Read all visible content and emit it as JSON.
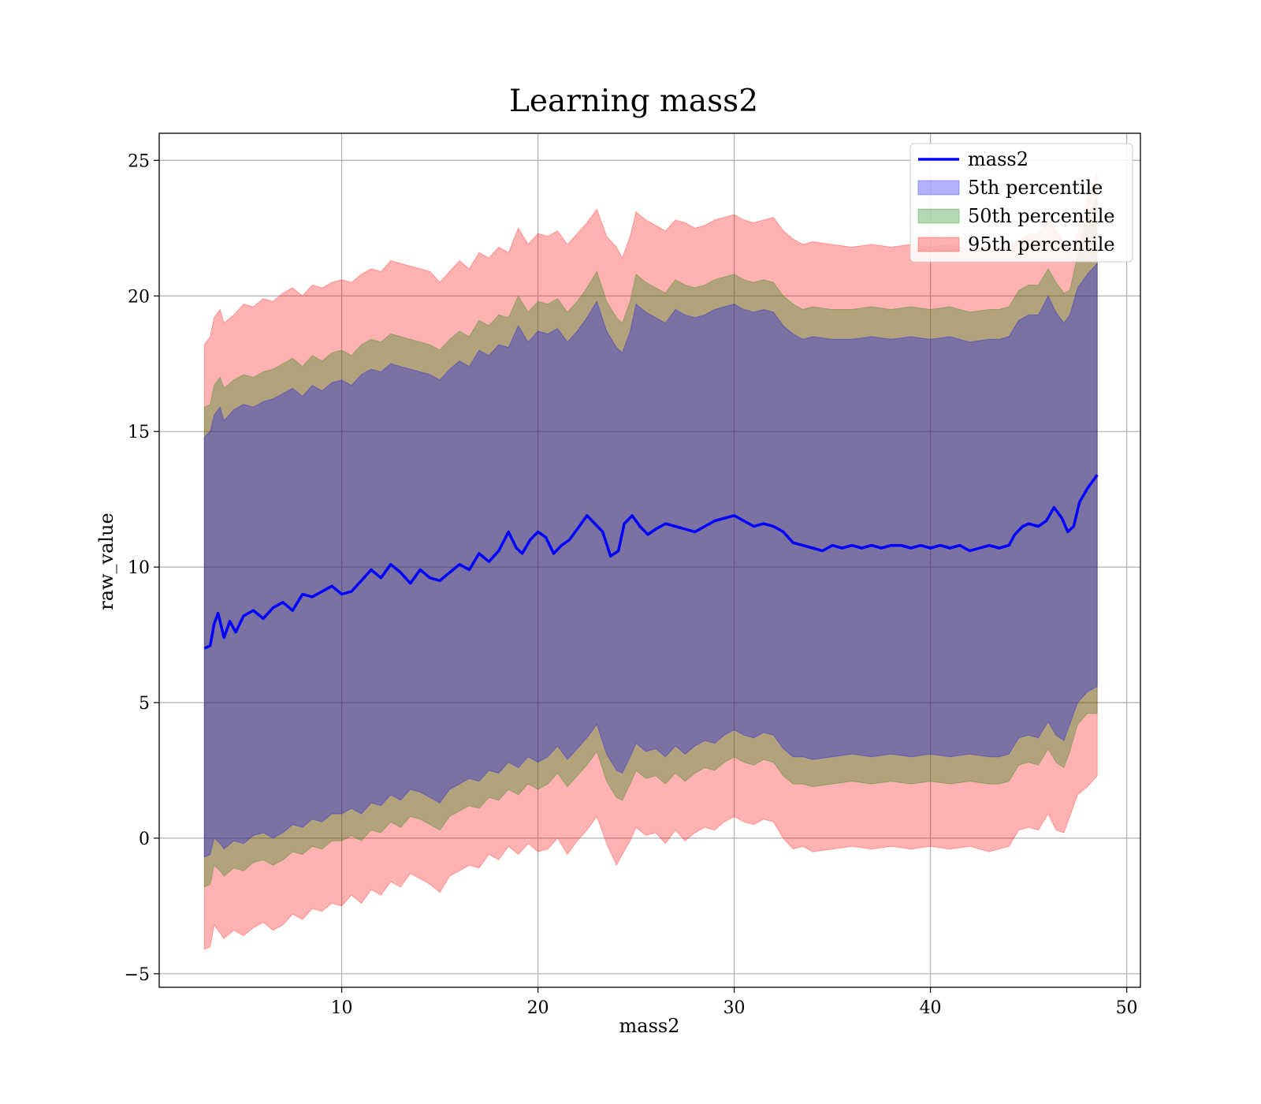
{
  "chart_data": {
    "type": "area",
    "title": "Learning mass2",
    "xlabel": "mass2",
    "ylabel": "raw_value",
    "xlim": [
      0.7,
      50.7
    ],
    "ylim": [
      -5.5,
      26
    ],
    "xticks": [
      10,
      20,
      30,
      40,
      50
    ],
    "yticks": [
      -5,
      0,
      5,
      10,
      15,
      20,
      25
    ],
    "ytick_labels": [
      "−5",
      "0",
      "5",
      "10",
      "15",
      "20",
      "25"
    ],
    "grid": true,
    "legend_position": "top-right",
    "legend": [
      {
        "label": "mass2",
        "kind": "line",
        "color": "#0000ff"
      },
      {
        "label": "5th percentile",
        "kind": "patch",
        "color": "#0000ff"
      },
      {
        "label": "50th percentile",
        "kind": "patch",
        "color": "#008000"
      },
      {
        "label": "95th percentile",
        "kind": "patch",
        "color": "#ff0000"
      }
    ],
    "line": {
      "name": "mass2",
      "color": "#0000ff",
      "x": [
        3.0,
        3.3,
        3.5,
        3.7,
        4.0,
        4.3,
        4.6,
        5.0,
        5.5,
        6.0,
        6.5,
        7.0,
        7.5,
        8.0,
        8.5,
        9.0,
        9.5,
        10.0,
        10.5,
        11.0,
        11.5,
        12.0,
        12.5,
        13.0,
        13.5,
        14.0,
        14.5,
        15.0,
        15.5,
        16.0,
        16.5,
        17.0,
        17.5,
        18.0,
        18.5,
        18.9,
        19.2,
        19.6,
        20.0,
        20.4,
        20.8,
        21.2,
        21.6,
        22.0,
        22.5,
        22.9,
        23.3,
        23.7,
        24.1,
        24.4,
        24.8,
        25.2,
        25.6,
        26.0,
        26.5,
        27.0,
        27.5,
        28.0,
        28.5,
        29.0,
        29.5,
        30.0,
        30.5,
        31.0,
        31.5,
        32.0,
        32.5,
        33.0,
        33.5,
        34.0,
        34.5,
        35.0,
        35.5,
        36.0,
        36.5,
        37.0,
        37.5,
        38.0,
        38.5,
        39.0,
        39.5,
        40.0,
        40.5,
        41.0,
        41.5,
        42.0,
        42.5,
        43.0,
        43.5,
        44.0,
        44.3,
        44.7,
        45.0,
        45.5,
        45.9,
        46.3,
        46.7,
        47.0,
        47.3,
        47.6,
        48.0,
        48.5
      ],
      "y": [
        7.0,
        7.1,
        7.9,
        8.3,
        7.4,
        8.0,
        7.6,
        8.2,
        8.4,
        8.1,
        8.5,
        8.7,
        8.4,
        9.0,
        8.9,
        9.1,
        9.3,
        9.0,
        9.1,
        9.5,
        9.9,
        9.6,
        10.1,
        9.8,
        9.4,
        9.9,
        9.6,
        9.5,
        9.8,
        10.1,
        9.9,
        10.5,
        10.2,
        10.6,
        11.3,
        10.7,
        10.5,
        11.0,
        11.3,
        11.1,
        10.5,
        10.8,
        11.0,
        11.4,
        11.9,
        11.6,
        11.3,
        10.4,
        10.6,
        11.6,
        11.9,
        11.5,
        11.2,
        11.4,
        11.6,
        11.5,
        11.4,
        11.3,
        11.5,
        11.7,
        11.8,
        11.9,
        11.7,
        11.5,
        11.6,
        11.5,
        11.3,
        10.9,
        10.8,
        10.7,
        10.6,
        10.8,
        10.7,
        10.8,
        10.7,
        10.8,
        10.7,
        10.8,
        10.8,
        10.7,
        10.8,
        10.7,
        10.8,
        10.7,
        10.8,
        10.6,
        10.7,
        10.8,
        10.7,
        10.8,
        11.2,
        11.5,
        11.6,
        11.5,
        11.7,
        12.2,
        11.8,
        11.3,
        11.5,
        12.4,
        12.9,
        13.4
      ]
    },
    "bands": [
      {
        "name": "95th percentile",
        "color": "#ff0000",
        "x": [
          3.0,
          3.3,
          3.5,
          3.8,
          4.0,
          4.5,
          5.0,
          5.5,
          6.0,
          6.5,
          7.0,
          7.5,
          8.0,
          8.5,
          9.0,
          9.5,
          10.0,
          10.5,
          11.0,
          11.5,
          12.0,
          12.5,
          13.0,
          13.5,
          14.0,
          14.5,
          15.0,
          15.5,
          16.0,
          16.5,
          17.0,
          17.5,
          18.0,
          18.5,
          19.0,
          19.5,
          20.0,
          20.5,
          21.0,
          21.5,
          22.0,
          22.5,
          23.0,
          23.5,
          24.0,
          24.3,
          24.7,
          25.0,
          25.5,
          26.0,
          26.5,
          27.0,
          27.5,
          28.0,
          28.5,
          29.0,
          29.5,
          30.0,
          30.5,
          31.0,
          31.5,
          32.0,
          32.5,
          33.0,
          33.5,
          34.0,
          35.0,
          36.0,
          37.0,
          38.0,
          39.0,
          40.0,
          41.0,
          42.0,
          43.0,
          43.5,
          44.0,
          44.5,
          45.0,
          45.5,
          46.0,
          46.4,
          46.8,
          47.1,
          47.5,
          48.0,
          48.5
        ],
        "upper": [
          18.2,
          18.5,
          19.2,
          19.5,
          19.0,
          19.3,
          19.7,
          19.6,
          19.9,
          19.8,
          20.1,
          20.3,
          20.0,
          20.4,
          20.3,
          20.5,
          20.6,
          20.5,
          20.8,
          21.0,
          20.9,
          21.3,
          21.2,
          21.1,
          21.0,
          20.9,
          20.5,
          20.9,
          21.3,
          21.0,
          21.6,
          21.4,
          21.8,
          21.6,
          22.5,
          21.9,
          22.3,
          22.2,
          22.4,
          21.9,
          22.3,
          22.7,
          23.2,
          22.2,
          21.8,
          21.4,
          22.2,
          23.1,
          22.8,
          22.6,
          22.4,
          22.8,
          22.7,
          22.5,
          22.6,
          22.8,
          22.9,
          23.0,
          22.8,
          22.7,
          22.8,
          22.9,
          22.4,
          22.1,
          21.9,
          22.0,
          21.9,
          21.8,
          21.9,
          21.8,
          21.9,
          21.8,
          21.9,
          21.7,
          21.8,
          21.8,
          21.8,
          22.0,
          22.3,
          22.3,
          22.8,
          22.4,
          22.0,
          21.6,
          22.3,
          23.6,
          24.5
        ],
        "lower": [
          -4.1,
          -4.0,
          -3.2,
          -3.5,
          -3.7,
          -3.4,
          -3.6,
          -3.3,
          -3.1,
          -3.4,
          -3.2,
          -2.8,
          -3.0,
          -2.6,
          -2.7,
          -2.4,
          -2.5,
          -2.1,
          -2.4,
          -1.9,
          -2.1,
          -1.6,
          -1.8,
          -1.3,
          -1.5,
          -1.7,
          -2.0,
          -1.4,
          -1.2,
          -1.0,
          -1.1,
          -0.6,
          -0.8,
          -0.3,
          -0.6,
          -0.2,
          -0.5,
          -0.4,
          0.0,
          -0.6,
          -0.1,
          0.3,
          0.8,
          -0.2,
          -1.0,
          -0.6,
          -0.1,
          0.4,
          0.1,
          0.2,
          -0.2,
          0.3,
          -0.1,
          0.2,
          0.4,
          0.3,
          0.6,
          0.8,
          0.6,
          0.5,
          0.7,
          0.6,
          0.0,
          -0.4,
          -0.3,
          -0.5,
          -0.4,
          -0.3,
          -0.4,
          -0.3,
          -0.4,
          -0.3,
          -0.4,
          -0.3,
          -0.5,
          -0.4,
          -0.3,
          0.3,
          0.4,
          0.3,
          0.9,
          0.3,
          0.2,
          0.8,
          1.6,
          1.9,
          2.3
        ]
      },
      {
        "name": "50th percentile",
        "color": "#008000",
        "x": [
          3.0,
          3.3,
          3.5,
          3.8,
          4.0,
          4.5,
          5.0,
          5.5,
          6.0,
          6.5,
          7.0,
          7.5,
          8.0,
          8.5,
          9.0,
          9.5,
          10.0,
          10.5,
          11.0,
          11.5,
          12.0,
          12.5,
          13.0,
          13.5,
          14.0,
          14.5,
          15.0,
          15.5,
          16.0,
          16.5,
          17.0,
          17.5,
          18.0,
          18.5,
          19.0,
          19.5,
          20.0,
          20.5,
          21.0,
          21.5,
          22.0,
          22.5,
          23.0,
          23.5,
          24.0,
          24.3,
          24.7,
          25.0,
          25.5,
          26.0,
          26.5,
          27.0,
          27.5,
          28.0,
          28.5,
          29.0,
          29.5,
          30.0,
          30.5,
          31.0,
          31.5,
          32.0,
          32.5,
          33.0,
          33.5,
          34.0,
          35.0,
          36.0,
          37.0,
          38.0,
          39.0,
          40.0,
          41.0,
          42.0,
          43.0,
          43.5,
          44.0,
          44.5,
          45.0,
          45.5,
          46.0,
          46.4,
          46.8,
          47.1,
          47.5,
          48.0,
          48.5
        ],
        "upper": [
          15.9,
          16.0,
          16.7,
          17.0,
          16.6,
          16.9,
          17.1,
          17.0,
          17.2,
          17.3,
          17.5,
          17.7,
          17.4,
          17.8,
          17.6,
          17.9,
          18.0,
          17.8,
          18.2,
          18.4,
          18.3,
          18.6,
          18.5,
          18.4,
          18.3,
          18.2,
          18.0,
          18.4,
          18.7,
          18.5,
          19.1,
          18.9,
          19.3,
          19.2,
          20.0,
          19.4,
          19.8,
          19.7,
          19.9,
          19.4,
          19.8,
          20.3,
          20.9,
          19.8,
          19.2,
          19.0,
          19.8,
          20.8,
          20.5,
          20.3,
          20.1,
          20.6,
          20.4,
          20.3,
          20.4,
          20.6,
          20.7,
          20.8,
          20.6,
          20.5,
          20.6,
          20.5,
          20.0,
          19.7,
          19.5,
          19.6,
          19.5,
          19.5,
          19.6,
          19.5,
          19.6,
          19.5,
          19.6,
          19.4,
          19.5,
          19.5,
          19.6,
          20.2,
          20.4,
          20.4,
          21.0,
          20.5,
          20.1,
          20.2,
          21.5,
          23.0,
          23.6
        ],
        "lower": [
          -1.8,
          -1.7,
          -1.0,
          -1.2,
          -1.4,
          -1.1,
          -1.2,
          -0.9,
          -0.8,
          -1.0,
          -0.8,
          -0.5,
          -0.6,
          -0.3,
          -0.4,
          -0.1,
          -0.1,
          0.1,
          -0.1,
          0.3,
          0.2,
          0.6,
          0.4,
          0.8,
          0.7,
          0.5,
          0.3,
          0.8,
          1.0,
          1.2,
          1.1,
          1.5,
          1.4,
          1.8,
          1.6,
          2.0,
          1.8,
          2.0,
          2.4,
          1.9,
          2.3,
          2.7,
          3.2,
          2.1,
          1.5,
          1.4,
          2.0,
          2.5,
          2.2,
          2.3,
          2.0,
          2.4,
          2.1,
          2.4,
          2.6,
          2.5,
          2.8,
          3.0,
          2.8,
          2.7,
          2.9,
          2.8,
          2.3,
          2.0,
          2.0,
          1.9,
          2.0,
          2.1,
          2.0,
          2.1,
          2.0,
          2.1,
          2.0,
          2.1,
          2.0,
          2.0,
          2.1,
          2.7,
          2.8,
          2.7,
          3.3,
          2.8,
          2.6,
          3.2,
          4.2,
          4.6,
          4.6
        ]
      },
      {
        "name": "5th percentile",
        "color": "#0000ff",
        "x": [
          3.0,
          3.3,
          3.5,
          3.8,
          4.0,
          4.5,
          5.0,
          5.5,
          6.0,
          6.5,
          7.0,
          7.5,
          8.0,
          8.5,
          9.0,
          9.5,
          10.0,
          10.5,
          11.0,
          11.5,
          12.0,
          12.5,
          13.0,
          13.5,
          14.0,
          14.5,
          15.0,
          15.5,
          16.0,
          16.5,
          17.0,
          17.5,
          18.0,
          18.5,
          19.0,
          19.5,
          20.0,
          20.5,
          21.0,
          21.5,
          22.0,
          22.5,
          23.0,
          23.5,
          24.0,
          24.3,
          24.7,
          25.0,
          25.5,
          26.0,
          26.5,
          27.0,
          27.5,
          28.0,
          28.5,
          29.0,
          29.5,
          30.0,
          30.5,
          31.0,
          31.5,
          32.0,
          32.5,
          33.0,
          33.5,
          34.0,
          35.0,
          36.0,
          37.0,
          38.0,
          39.0,
          40.0,
          41.0,
          42.0,
          43.0,
          43.5,
          44.0,
          44.5,
          45.0,
          45.5,
          46.0,
          46.4,
          46.8,
          47.1,
          47.5,
          48.0,
          48.5
        ],
        "upper": [
          14.8,
          15.0,
          15.6,
          15.9,
          15.4,
          15.8,
          16.0,
          15.9,
          16.1,
          16.2,
          16.4,
          16.6,
          16.3,
          16.7,
          16.5,
          16.8,
          16.9,
          16.7,
          17.1,
          17.3,
          17.2,
          17.5,
          17.4,
          17.3,
          17.2,
          17.1,
          16.9,
          17.3,
          17.6,
          17.4,
          18.0,
          17.8,
          18.2,
          18.1,
          18.9,
          18.3,
          18.7,
          18.6,
          18.8,
          18.3,
          18.7,
          19.2,
          19.8,
          18.7,
          18.1,
          17.9,
          18.7,
          19.7,
          19.4,
          19.2,
          19.0,
          19.5,
          19.3,
          19.2,
          19.3,
          19.5,
          19.6,
          19.7,
          19.5,
          19.4,
          19.5,
          19.4,
          18.9,
          18.6,
          18.4,
          18.5,
          18.4,
          18.4,
          18.5,
          18.4,
          18.5,
          18.4,
          18.5,
          18.3,
          18.4,
          18.4,
          18.5,
          19.1,
          19.3,
          19.3,
          20.0,
          19.4,
          19.0,
          19.3,
          20.3,
          20.8,
          21.2
        ],
        "lower": [
          -0.7,
          -0.6,
          0.0,
          -0.2,
          -0.4,
          -0.1,
          -0.2,
          0.1,
          0.2,
          0.0,
          0.2,
          0.5,
          0.4,
          0.7,
          0.6,
          0.9,
          0.9,
          1.1,
          0.9,
          1.3,
          1.2,
          1.6,
          1.4,
          1.8,
          1.7,
          1.5,
          1.3,
          1.8,
          2.0,
          2.2,
          2.1,
          2.5,
          2.4,
          2.8,
          2.6,
          3.0,
          2.8,
          3.0,
          3.4,
          2.9,
          3.3,
          3.7,
          4.2,
          3.1,
          2.5,
          2.4,
          3.0,
          3.5,
          3.2,
          3.3,
          3.0,
          3.4,
          3.1,
          3.4,
          3.6,
          3.5,
          3.8,
          4.0,
          3.8,
          3.7,
          3.9,
          3.8,
          3.3,
          3.0,
          3.0,
          2.9,
          3.0,
          3.1,
          3.0,
          3.1,
          3.0,
          3.1,
          3.0,
          3.1,
          3.0,
          3.0,
          3.1,
          3.7,
          3.8,
          3.7,
          4.3,
          3.8,
          3.6,
          4.2,
          5.0,
          5.4,
          5.6
        ]
      }
    ]
  }
}
